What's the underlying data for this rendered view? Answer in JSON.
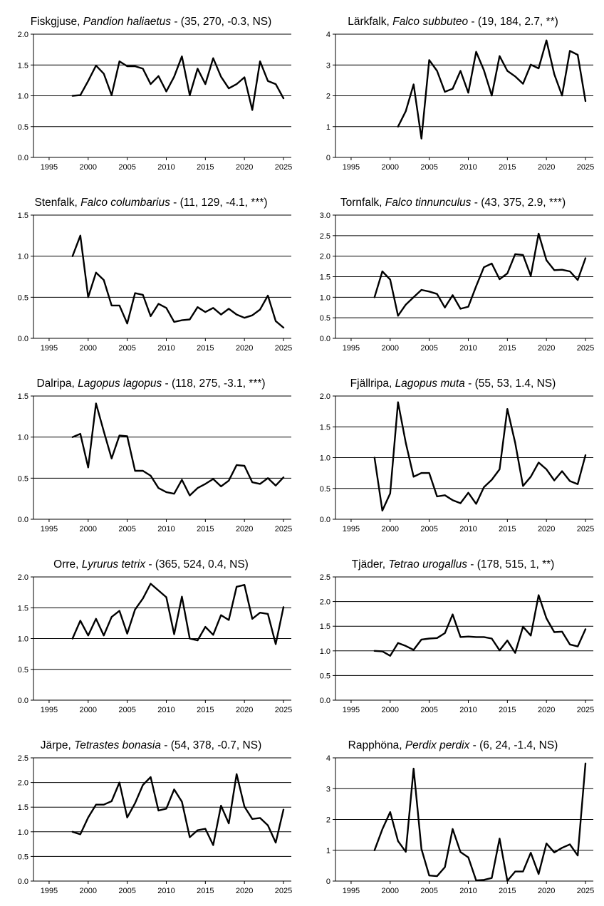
{
  "chart_data": [
    {
      "type": "line",
      "common_name": "Fiskgjuse",
      "scientific_name": "Pandion haliaetus",
      "stats": " - (35, 270, -0.3, NS)",
      "x": [
        1998,
        1999,
        2000,
        2001,
        2002,
        2003,
        2004,
        2005,
        2006,
        2007,
        2008,
        2009,
        2010,
        2011,
        2012,
        2013,
        2014,
        2015,
        2016,
        2017,
        2018,
        2019,
        2020,
        2021,
        2022,
        2023,
        2024,
        2025
      ],
      "series": [
        {
          "values": [
            1.0,
            1.01,
            1.24,
            1.49,
            1.36,
            1.01,
            1.56,
            1.48,
            1.48,
            1.44,
            1.19,
            1.32,
            1.07,
            1.31,
            1.64,
            1.01,
            1.44,
            1.19,
            1.61,
            1.31,
            1.12,
            1.19,
            1.3,
            0.77,
            1.56,
            1.24,
            1.19,
            0.96
          ]
        }
      ],
      "xlim": [
        1993,
        2026
      ],
      "ylim": [
        0,
        2.0
      ],
      "yticks": [
        "0.0",
        "0.5",
        "1.0",
        "1.5",
        "2.0"
      ],
      "xticks": [
        "1995",
        "2000",
        "2005",
        "2010",
        "2015",
        "2020",
        "2025"
      ],
      "grid": "horizontal"
    },
    {
      "type": "line",
      "common_name": "Lärkfalk",
      "scientific_name": "Falco subbuteo",
      "stats": " - (19, 184, 2.7, **)",
      "x": [
        2001,
        2002,
        2003,
        2004,
        2005,
        2006,
        2007,
        2008,
        2009,
        2010,
        2011,
        2012,
        2013,
        2014,
        2015,
        2016,
        2017,
        2018,
        2019,
        2020,
        2021,
        2022,
        2023,
        2024,
        2025
      ],
      "series": [
        {
          "values": [
            1.0,
            1.5,
            2.37,
            0.61,
            3.16,
            2.81,
            2.13,
            2.23,
            2.81,
            2.1,
            3.43,
            2.83,
            2.01,
            3.29,
            2.81,
            2.63,
            2.39,
            3.01,
            2.89,
            3.8,
            2.7,
            2.01,
            3.46,
            3.33,
            1.83
          ]
        }
      ],
      "xlim": [
        1993,
        2026
      ],
      "ylim": [
        0,
        4
      ],
      "yticks": [
        "0",
        "1",
        "2",
        "3",
        "4"
      ],
      "xticks": [
        "1995",
        "2000",
        "2005",
        "2010",
        "2015",
        "2020",
        "2025"
      ],
      "grid": "horizontal"
    },
    {
      "type": "line",
      "common_name": "Stenfalk",
      "scientific_name": "Falco columbarius",
      "stats": " - (11, 129, -4.1, ***)",
      "x": [
        1998,
        1999,
        2000,
        2001,
        2002,
        2003,
        2004,
        2005,
        2006,
        2007,
        2008,
        2009,
        2010,
        2011,
        2012,
        2013,
        2014,
        2015,
        2016,
        2017,
        2018,
        2019,
        2020,
        2021,
        2022,
        2023,
        2024,
        2025
      ],
      "series": [
        {
          "values": [
            1.0,
            1.25,
            0.5,
            0.8,
            0.71,
            0.4,
            0.4,
            0.18,
            0.55,
            0.53,
            0.27,
            0.42,
            0.37,
            0.2,
            0.22,
            0.23,
            0.38,
            0.32,
            0.37,
            0.29,
            0.36,
            0.29,
            0.25,
            0.28,
            0.35,
            0.52,
            0.21,
            0.13
          ]
        }
      ],
      "xlim": [
        1993,
        2026
      ],
      "ylim": [
        0,
        1.5
      ],
      "yticks": [
        "0.0",
        "0.5",
        "1.0",
        "1.5"
      ],
      "xticks": [
        "1995",
        "2000",
        "2005",
        "2010",
        "2015",
        "2020",
        "2025"
      ],
      "grid": "horizontal"
    },
    {
      "type": "line",
      "common_name": "Tornfalk",
      "scientific_name": "Falco tinnunculus",
      "stats": " - (43, 375, 2.9, ***)",
      "x": [
        1998,
        1999,
        2000,
        2001,
        2002,
        2003,
        2004,
        2005,
        2006,
        2007,
        2008,
        2009,
        2010,
        2011,
        2012,
        2013,
        2014,
        2015,
        2016,
        2017,
        2018,
        2019,
        2020,
        2021,
        2022,
        2023,
        2024,
        2025
      ],
      "series": [
        {
          "values": [
            1.0,
            1.63,
            1.43,
            0.55,
            0.82,
            1.0,
            1.18,
            1.14,
            1.08,
            0.75,
            1.05,
            0.72,
            0.77,
            1.27,
            1.73,
            1.82,
            1.44,
            1.58,
            2.05,
            2.03,
            1.52,
            2.55,
            1.9,
            1.66,
            1.67,
            1.63,
            1.42,
            1.95
          ]
        }
      ],
      "xlim": [
        1993,
        2026
      ],
      "ylim": [
        0,
        3.0
      ],
      "yticks": [
        "0.0",
        "0.5",
        "1.0",
        "1.5",
        "2.0",
        "2.5",
        "3.0"
      ],
      "xticks": [
        "1995",
        "2000",
        "2005",
        "2010",
        "2015",
        "2020",
        "2025"
      ],
      "grid": "horizontal"
    },
    {
      "type": "line",
      "common_name": "Dalripa",
      "scientific_name": "Lagopus lagopus",
      "stats": " - (118, 275, -3.1, ***)",
      "x": [
        1998,
        1999,
        2000,
        2001,
        2002,
        2003,
        2004,
        2005,
        2006,
        2007,
        2008,
        2009,
        2010,
        2011,
        2012,
        2013,
        2014,
        2015,
        2016,
        2017,
        2018,
        2019,
        2020,
        2021,
        2022,
        2023,
        2024,
        2025
      ],
      "series": [
        {
          "values": [
            1.0,
            1.04,
            0.63,
            1.41,
            1.07,
            0.74,
            1.02,
            1.01,
            0.59,
            0.59,
            0.53,
            0.38,
            0.33,
            0.31,
            0.48,
            0.29,
            0.38,
            0.43,
            0.49,
            0.4,
            0.47,
            0.66,
            0.65,
            0.45,
            0.43,
            0.5,
            0.41,
            0.51
          ]
        }
      ],
      "xlim": [
        1993,
        2026
      ],
      "ylim": [
        0,
        1.5
      ],
      "yticks": [
        "0.0",
        "0.5",
        "1.0",
        "1.5"
      ],
      "xticks": [
        "1995",
        "2000",
        "2005",
        "2010",
        "2015",
        "2020",
        "2025"
      ],
      "grid": "horizontal"
    },
    {
      "type": "line",
      "common_name": "Fjällripa",
      "scientific_name": "Lagopus muta",
      "stats": " - (55, 53, 1.4, NS)",
      "x": [
        1998,
        1999,
        2000,
        2001,
        2002,
        2003,
        2004,
        2005,
        2006,
        2007,
        2008,
        2009,
        2010,
        2011,
        2012,
        2013,
        2014,
        2015,
        2016,
        2017,
        2018,
        2019,
        2020,
        2021,
        2022,
        2023,
        2024,
        2025
      ],
      "series": [
        {
          "values": [
            1.0,
            0.14,
            0.42,
            1.9,
            1.24,
            0.69,
            0.75,
            0.75,
            0.37,
            0.39,
            0.31,
            0.26,
            0.43,
            0.25,
            0.52,
            0.64,
            0.81,
            1.79,
            1.24,
            0.54,
            0.69,
            0.92,
            0.81,
            0.63,
            0.78,
            0.62,
            0.57,
            1.04
          ]
        }
      ],
      "xlim": [
        1993,
        2026
      ],
      "ylim": [
        0,
        2.0
      ],
      "yticks": [
        "0.0",
        "0.5",
        "1.0",
        "1.5",
        "2.0"
      ],
      "xticks": [
        "1995",
        "2000",
        "2005",
        "2010",
        "2015",
        "2020",
        "2025"
      ],
      "grid": "horizontal"
    },
    {
      "type": "line",
      "common_name": "Orre",
      "scientific_name": "Lyrurus tetrix",
      "stats": " - (365, 524, 0.4, NS)",
      "x": [
        1998,
        1999,
        2000,
        2001,
        2002,
        2003,
        2004,
        2005,
        2006,
        2007,
        2008,
        2009,
        2010,
        2011,
        2012,
        2013,
        2014,
        2015,
        2016,
        2017,
        2018,
        2019,
        2020,
        2021,
        2022,
        2023,
        2024,
        2025
      ],
      "series": [
        {
          "values": [
            1.0,
            1.29,
            1.05,
            1.32,
            1.05,
            1.35,
            1.45,
            1.08,
            1.47,
            1.65,
            1.89,
            1.78,
            1.67,
            1.07,
            1.68,
            1.0,
            0.97,
            1.19,
            1.06,
            1.38,
            1.3,
            1.84,
            1.87,
            1.32,
            1.42,
            1.4,
            0.91,
            1.51
          ]
        }
      ],
      "xlim": [
        1993,
        2026
      ],
      "ylim": [
        0,
        2.0
      ],
      "yticks": [
        "0.0",
        "0.5",
        "1.0",
        "1.5",
        "2.0"
      ],
      "xticks": [
        "1995",
        "2000",
        "2005",
        "2010",
        "2015",
        "2020",
        "2025"
      ],
      "grid": "horizontal"
    },
    {
      "type": "line",
      "common_name": "Tjäder",
      "scientific_name": "Tetrao urogallus",
      "stats": " - (178, 515, 1, **)",
      "x": [
        1998,
        1999,
        2000,
        2001,
        2002,
        2003,
        2004,
        2005,
        2006,
        2007,
        2008,
        2009,
        2010,
        2011,
        2012,
        2013,
        2014,
        2015,
        2016,
        2017,
        2018,
        2019,
        2020,
        2021,
        2022,
        2023,
        2024,
        2025
      ],
      "series": [
        {
          "values": [
            1.0,
            0.99,
            0.9,
            1.16,
            1.1,
            1.02,
            1.23,
            1.25,
            1.26,
            1.36,
            1.74,
            1.28,
            1.29,
            1.28,
            1.28,
            1.25,
            1.01,
            1.21,
            0.96,
            1.49,
            1.31,
            2.13,
            1.66,
            1.38,
            1.39,
            1.13,
            1.09,
            1.44
          ]
        }
      ],
      "xlim": [
        1993,
        2026
      ],
      "ylim": [
        0,
        2.5
      ],
      "yticks": [
        "0.0",
        "0.5",
        "1.0",
        "1.5",
        "2.0",
        "2.5"
      ],
      "xticks": [
        "1995",
        "2000",
        "2005",
        "2010",
        "2015",
        "2020",
        "2025"
      ],
      "grid": "horizontal"
    },
    {
      "type": "line",
      "common_name": "Järpe",
      "scientific_name": "Tetrastes bonasia",
      "stats": " - (54, 378, -0.7, NS)",
      "x": [
        1998,
        1999,
        2000,
        2001,
        2002,
        2003,
        2004,
        2005,
        2006,
        2007,
        2008,
        2009,
        2010,
        2011,
        2012,
        2013,
        2014,
        2015,
        2016,
        2017,
        2018,
        2019,
        2020,
        2021,
        2022,
        2023,
        2024,
        2025
      ],
      "series": [
        {
          "values": [
            1.0,
            0.95,
            1.29,
            1.55,
            1.55,
            1.62,
            2.0,
            1.29,
            1.58,
            1.95,
            2.11,
            1.43,
            1.47,
            1.86,
            1.61,
            0.89,
            1.03,
            1.06,
            0.73,
            1.53,
            1.17,
            2.17,
            1.51,
            1.26,
            1.28,
            1.13,
            0.78,
            1.45
          ]
        }
      ],
      "xlim": [
        1993,
        2026
      ],
      "ylim": [
        0,
        2.5
      ],
      "yticks": [
        "0.0",
        "0.5",
        "1.0",
        "1.5",
        "2.0",
        "2.5"
      ],
      "xticks": [
        "1995",
        "2000",
        "2005",
        "2010",
        "2015",
        "2020",
        "2025"
      ],
      "grid": "horizontal"
    },
    {
      "type": "line",
      "common_name": "Rapphöna",
      "scientific_name": "Perdix perdix",
      "stats": " - (6, 24, -1.4, NS)",
      "x": [
        1998,
        1999,
        2000,
        2001,
        2002,
        2003,
        2004,
        2005,
        2006,
        2007,
        2008,
        2009,
        2010,
        2011,
        2012,
        2013,
        2014,
        2015,
        2016,
        2017,
        2018,
        2019,
        2020,
        2021,
        2022,
        2023,
        2024,
        2025
      ],
      "series": [
        {
          "values": [
            1.0,
            1.68,
            2.24,
            1.3,
            0.95,
            3.65,
            1.04,
            0.18,
            0.16,
            0.45,
            1.69,
            0.94,
            0.77,
            0.02,
            0.04,
            0.1,
            1.38,
            0.01,
            0.31,
            0.31,
            0.92,
            0.23,
            1.22,
            0.93,
            1.08,
            1.19,
            0.83,
            3.82
          ]
        }
      ],
      "xlim": [
        1993,
        2026
      ],
      "ylim": [
        0,
        4
      ],
      "yticks": [
        "0",
        "1",
        "2",
        "3",
        "4"
      ],
      "xticks": [
        "1995",
        "2000",
        "2005",
        "2010",
        "2015",
        "2020",
        "2025"
      ],
      "grid": "horizontal"
    }
  ]
}
